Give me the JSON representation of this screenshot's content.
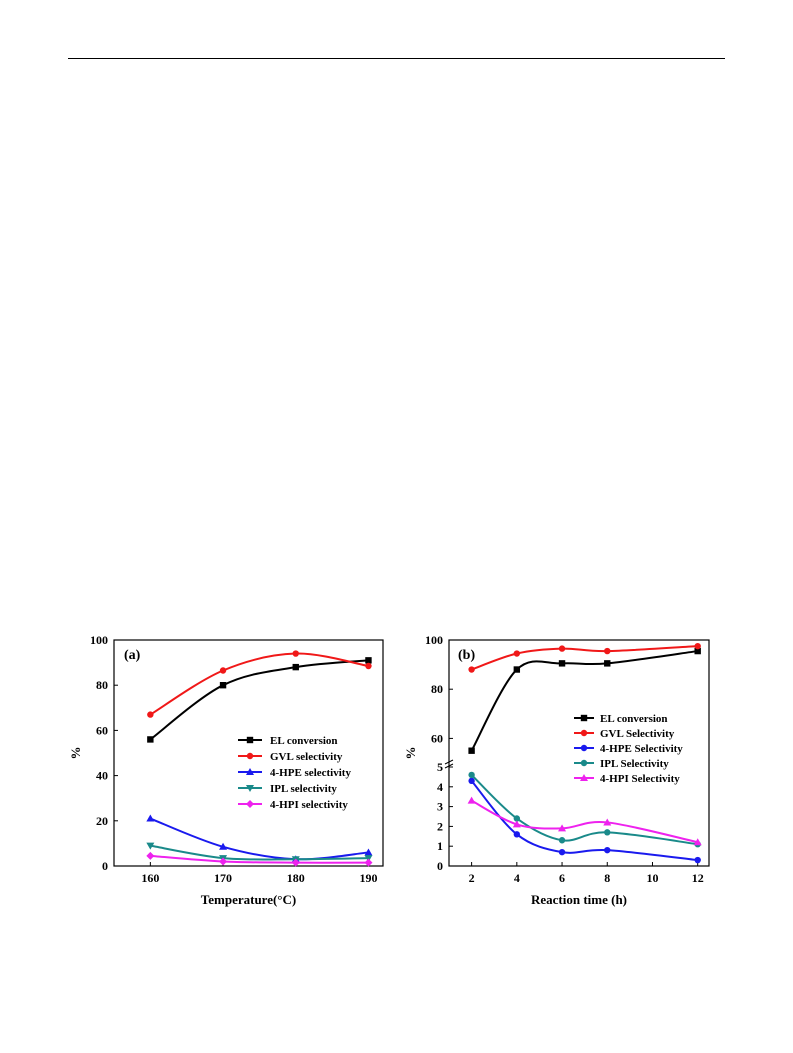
{
  "colors": {
    "black": "#000000",
    "red": "#f01818",
    "blue": "#1a1aee",
    "teal": "#1a8a8a",
    "magenta": "#ee22ee"
  },
  "chart_data": [
    {
      "type": "scatter",
      "panel_label": "(a)",
      "xlabel": "Temperature(°C)",
      "ylabel": "%",
      "xlim": [
        155,
        192
      ],
      "ylim": [
        0,
        100
      ],
      "x_ticks": [
        160,
        170,
        180,
        190
      ],
      "y_ticks": [
        0,
        20,
        40,
        60,
        80,
        100
      ],
      "x": [
        160,
        170,
        180,
        190
      ],
      "legend_position": "center-right",
      "series": [
        {
          "name": "EL conversion",
          "color_key": "black",
          "marker": "square",
          "values": [
            56,
            80,
            88,
            91
          ]
        },
        {
          "name": "GVL selectivity",
          "color_key": "red",
          "marker": "circle",
          "values": [
            67,
            86.5,
            94,
            88.5
          ]
        },
        {
          "name": "4-HPE selectivity",
          "color_key": "blue",
          "marker": "triangle-up",
          "values": [
            21,
            8.5,
            3,
            6
          ]
        },
        {
          "name": "IPL selectivity",
          "color_key": "teal",
          "marker": "triangle-down",
          "values": [
            9,
            3.5,
            3,
            3.5
          ]
        },
        {
          "name": "4-HPI selectivity",
          "color_key": "magenta",
          "marker": "diamond",
          "values": [
            4.5,
            2,
            1.5,
            1.5
          ]
        }
      ]
    },
    {
      "type": "scatter",
      "panel_label": "(b)",
      "xlabel": "Reaction time (h)",
      "ylabel": "%",
      "xlim": [
        1,
        12.5
      ],
      "axis_break": "broken y axis: 0–5 (lower), 60–100 (upper)",
      "y_ticks_lower": [
        0,
        1,
        2,
        3,
        4,
        5
      ],
      "y_ticks_upper": [
        60,
        80,
        100
      ],
      "x_ticks": [
        2,
        4,
        6,
        8,
        10,
        12
      ],
      "x": [
        2,
        4,
        6,
        8,
        12
      ],
      "legend_position": "center-right",
      "series": [
        {
          "name": "EL conversion",
          "color_key": "black",
          "marker": "square",
          "values": [
            55,
            88,
            90.5,
            90.5,
            95.5
          ]
        },
        {
          "name": "GVL Selectivity",
          "color_key": "red",
          "marker": "circle",
          "values": [
            88,
            94.5,
            96.5,
            95.5,
            97.5
          ]
        },
        {
          "name": "4-HPE Selectivity",
          "color_key": "blue",
          "marker": "circle",
          "values": [
            4.3,
            1.6,
            0.7,
            0.8,
            0.3
          ]
        },
        {
          "name": "IPL Selectivity",
          "color_key": "teal",
          "marker": "circle",
          "values": [
            4.6,
            2.4,
            1.3,
            1.7,
            1.1
          ]
        },
        {
          "name": "4-HPI Selectivity",
          "color_key": "magenta",
          "marker": "triangle-up",
          "values": [
            3.3,
            2.1,
            1.9,
            2.2,
            1.2
          ]
        }
      ]
    }
  ]
}
